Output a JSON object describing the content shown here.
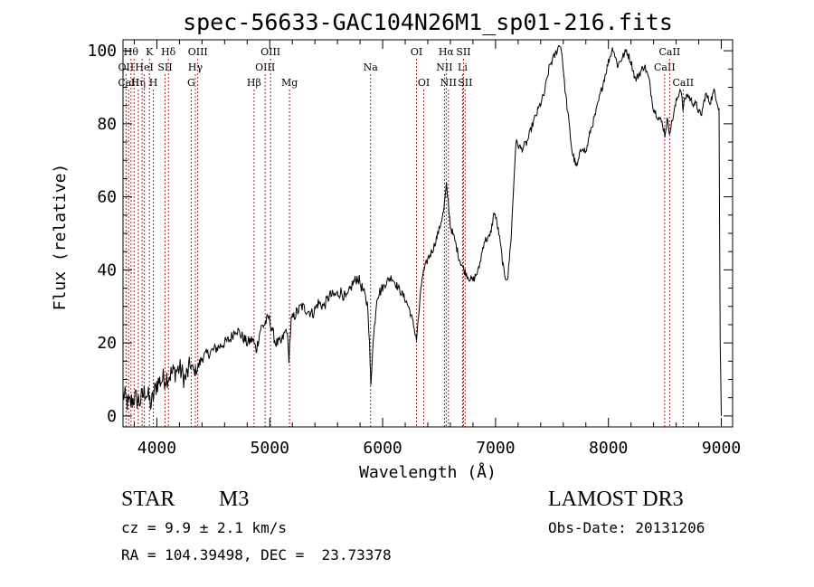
{
  "chart_data": {
    "type": "line",
    "title": "spec-56633-GAC104N26M1_sp01-216.fits",
    "xlabel": "Wavelength (Å)",
    "ylabel": "Flux (relative)",
    "xlim": [
      3700,
      9100
    ],
    "ylim": [
      -3,
      103
    ],
    "xticks": [
      4000,
      5000,
      6000,
      7000,
      8000,
      9000
    ],
    "yticks": [
      0,
      20,
      40,
      60,
      80,
      100
    ],
    "series": [
      {
        "name": "spectrum",
        "x": [
          3700,
          3750,
          3800,
          3850,
          3900,
          3950,
          4000,
          4050,
          4100,
          4150,
          4200,
          4250,
          4300,
          4330,
          4360,
          4400,
          4450,
          4500,
          4550,
          4600,
          4650,
          4700,
          4750,
          4800,
          4850,
          4880,
          4920,
          4950,
          4990,
          5010,
          5050,
          5100,
          5150,
          5170,
          5190,
          5230,
          5280,
          5330,
          5380,
          5430,
          5480,
          5530,
          5580,
          5630,
          5680,
          5730,
          5780,
          5830,
          5870,
          5890,
          5895,
          5910,
          5950,
          6000,
          6040,
          6080,
          6120,
          6160,
          6200,
          6240,
          6280,
          6300,
          6350,
          6400,
          6450,
          6500,
          6540,
          6565,
          6580,
          6600,
          6640,
          6680,
          6720,
          6760,
          6800,
          6850,
          6900,
          6950,
          6990,
          7030,
          7080,
          7110,
          7140,
          7180,
          7230,
          7280,
          7330,
          7380,
          7430,
          7480,
          7530,
          7570,
          7590,
          7610,
          7640,
          7680,
          7720,
          7750,
          7770,
          7800,
          7840,
          7880,
          7920,
          7960,
          8000,
          8040,
          8080,
          8120,
          8160,
          8200,
          8240,
          8280,
          8320,
          8360,
          8400,
          8440,
          8480,
          8500,
          8520,
          8540,
          8560,
          8600,
          8640,
          8660,
          8680,
          8700,
          8740,
          8780,
          8820,
          8860,
          8900,
          8940,
          8980,
          8990,
          9000
        ],
        "y": [
          6,
          3,
          5,
          4,
          7,
          3,
          9,
          10,
          11,
          12,
          13,
          10,
          14,
          12,
          13,
          16,
          17,
          18,
          19,
          20,
          21,
          24,
          22,
          20,
          21,
          18,
          24,
          25,
          27,
          25,
          20,
          20,
          24,
          16,
          26,
          28,
          30,
          29,
          28,
          31,
          30,
          33,
          33,
          34,
          32,
          36,
          38,
          34,
          30,
          14,
          8,
          18,
          33,
          35,
          37,
          38,
          36,
          34,
          32,
          29,
          24,
          21,
          38,
          43,
          46,
          51,
          56,
          63,
          59,
          52,
          48,
          43,
          40,
          38,
          37,
          40,
          48,
          49,
          56,
          50,
          38,
          38,
          50,
          75,
          73,
          75,
          80,
          84,
          88,
          96,
          99,
          102,
          99,
          91,
          83,
          72,
          68,
          72,
          74,
          72,
          78,
          82,
          87,
          92,
          97,
          101,
          96,
          98,
          100,
          97,
          92,
          94,
          96,
          92,
          84,
          82,
          80,
          77,
          81,
          78,
          80,
          86,
          90,
          84,
          87,
          88,
          86,
          85,
          82,
          88,
          86,
          89,
          84,
          20,
          0
        ]
      }
    ],
    "lines": [
      {
        "wl": 3727,
        "label": "OII",
        "row": 1,
        "color": "#b02020"
      },
      {
        "wl": 3750,
        "label": "CaII",
        "row": 2,
        "color": "#b02020"
      },
      {
        "wl": 3771,
        "label": "Hθ",
        "row": 0,
        "color": "#b02020"
      },
      {
        "wl": 3798,
        "label": "",
        "row": 0,
        "color": "#b02020"
      },
      {
        "wl": 3835,
        "label": "Hη",
        "row": 2,
        "color": "#b02020"
      },
      {
        "wl": 3869,
        "label": "",
        "row": 0,
        "color": "#b02020"
      },
      {
        "wl": 3889,
        "label": "HeI",
        "row": 1,
        "color": "#b02020"
      },
      {
        "wl": 3934,
        "label": "K",
        "row": 0,
        "color": "#b02020"
      },
      {
        "wl": 3969,
        "label": "H",
        "row": 2,
        "color": "#b02020"
      },
      {
        "wl": 4072,
        "label": "SII",
        "row": 1,
        "color": "#b02020"
      },
      {
        "wl": 4102,
        "label": "Hδ",
        "row": 0,
        "color": "#b02020"
      },
      {
        "wl": 4304,
        "label": "G",
        "row": 2,
        "color": "#b02020"
      },
      {
        "wl": 4341,
        "label": "Hγ",
        "row": 1,
        "color": "#b02020"
      },
      {
        "wl": 4363,
        "label": "OIII",
        "row": 0,
        "color": "#b02020"
      },
      {
        "wl": 4861,
        "label": "Hβ",
        "row": 2,
        "color": "#b02020"
      },
      {
        "wl": 4959,
        "label": "OIII",
        "row": 1,
        "color": "#b02020"
      },
      {
        "wl": 5007,
        "label": "OIII",
        "row": 0,
        "color": "#b02020"
      },
      {
        "wl": 5175,
        "label": "Mg",
        "row": 2,
        "color": "#b02020"
      },
      {
        "wl": 5893,
        "label": "Na",
        "row": 1,
        "color": "#b02020"
      },
      {
        "wl": 6300,
        "label": "OI",
        "row": 0,
        "color": "#b02020"
      },
      {
        "wl": 6364,
        "label": "OI",
        "row": 2,
        "color": "#b02020"
      },
      {
        "wl": 6548,
        "label": "NII",
        "row": 1,
        "color": "#b02020"
      },
      {
        "wl": 6563,
        "label": "Hα",
        "row": 0,
        "color": "#b02020"
      },
      {
        "wl": 6583,
        "label": "NII",
        "row": 2,
        "color": "#b02020"
      },
      {
        "wl": 6708,
        "label": "Li",
        "row": 1,
        "color": "#b02020"
      },
      {
        "wl": 6716,
        "label": "SII",
        "row": 0,
        "color": "#b02020"
      },
      {
        "wl": 6731,
        "label": "SII",
        "row": 2,
        "color": "#b02020"
      },
      {
        "wl": 8498,
        "label": "CaII",
        "row": 1,
        "color": "#b02020"
      },
      {
        "wl": 8542,
        "label": "CaII",
        "row": 0,
        "color": "#b02020"
      },
      {
        "wl": 8662,
        "label": "CaII",
        "row": 2,
        "color": "#b02020"
      }
    ],
    "grid": false,
    "legend": "none"
  },
  "info": {
    "object_class": "STAR",
    "subclass": "M3",
    "survey": "LAMOST DR3",
    "cz": "cz = 9.9 ± 2.1 km/s",
    "obs_date": "Obs-Date: 20131206",
    "coords": "RA = 104.39498, DEC =  23.73378"
  }
}
